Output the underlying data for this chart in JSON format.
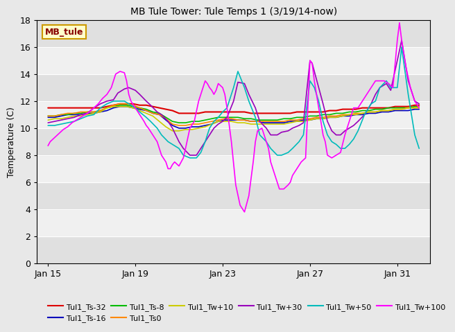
{
  "title": "MB Tule Tower: Tule Temps 1 (3/19/14-now)",
  "ylabel": "Temperature (C)",
  "xlim_days": [
    14.5,
    32.5
  ],
  "ylim": [
    0,
    18
  ],
  "yticks": [
    0,
    2,
    4,
    6,
    8,
    10,
    12,
    14,
    16,
    18
  ],
  "xtick_labels": [
    "Jan 15",
    "Jan 19",
    "Jan 23",
    "Jan 27",
    "Jan 31"
  ],
  "xtick_positions": [
    15,
    19,
    23,
    27,
    31
  ],
  "bg_color": "#e8e8e8",
  "plot_bg": "#e0e0e0",
  "band_light": "#f0f0f0",
  "band_dark": "#e0e0e0",
  "watermark_text": "MB_tule",
  "watermark_bg": "#ffffcc",
  "watermark_border": "#cc9900",
  "watermark_text_color": "#880000",
  "legend_entries": [
    {
      "label": "Tul1_Ts-32",
      "color": "#dd0000"
    },
    {
      "label": "Tul1_Ts-16",
      "color": "#0000bb"
    },
    {
      "label": "Tul1_Ts-8",
      "color": "#00bb00"
    },
    {
      "label": "Tul1_Ts0",
      "color": "#ff8800"
    },
    {
      "label": "Tul1_Tw+10",
      "color": "#cccc00"
    },
    {
      "label": "Tul1_Tw+30",
      "color": "#9900bb"
    },
    {
      "label": "Tul1_Tw+50",
      "color": "#00bbbb"
    },
    {
      "label": "Tul1_Tw+100",
      "color": "#ff00ff"
    }
  ],
  "series": {
    "Tul1_Ts-32": {
      "color": "#dd0000",
      "lw": 1.5,
      "x": [
        15.0,
        15.3,
        15.6,
        15.9,
        16.2,
        16.5,
        16.8,
        17.1,
        17.4,
        17.7,
        18.0,
        18.3,
        18.6,
        18.9,
        19.2,
        19.5,
        19.8,
        20.1,
        20.4,
        20.7,
        21.0,
        21.3,
        21.6,
        21.9,
        22.2,
        22.5,
        22.8,
        23.1,
        23.4,
        23.7,
        24.0,
        24.3,
        24.6,
        24.9,
        25.2,
        25.5,
        25.8,
        26.1,
        26.4,
        26.7,
        27.0,
        27.3,
        27.6,
        27.9,
        28.2,
        28.5,
        28.8,
        29.1,
        29.4,
        29.7,
        30.0,
        30.3,
        30.6,
        30.9,
        31.2,
        31.5,
        31.8,
        32.0
      ],
      "y": [
        11.5,
        11.5,
        11.5,
        11.5,
        11.5,
        11.5,
        11.5,
        11.5,
        11.5,
        11.6,
        11.7,
        11.8,
        11.8,
        11.8,
        11.7,
        11.7,
        11.6,
        11.5,
        11.4,
        11.3,
        11.1,
        11.1,
        11.1,
        11.1,
        11.2,
        11.2,
        11.2,
        11.2,
        11.2,
        11.2,
        11.2,
        11.1,
        11.1,
        11.1,
        11.1,
        11.1,
        11.1,
        11.1,
        11.2,
        11.2,
        11.2,
        11.2,
        11.2,
        11.3,
        11.3,
        11.4,
        11.4,
        11.4,
        11.5,
        11.5,
        11.5,
        11.5,
        11.5,
        11.6,
        11.6,
        11.6,
        11.7,
        11.7
      ]
    },
    "Tul1_Ts-16": {
      "color": "#0000bb",
      "lw": 1.2,
      "x": [
        15.0,
        15.3,
        15.6,
        15.9,
        16.2,
        16.5,
        16.8,
        17.1,
        17.4,
        17.7,
        18.0,
        18.3,
        18.6,
        18.9,
        19.2,
        19.5,
        19.8,
        20.1,
        20.4,
        20.7,
        21.0,
        21.3,
        21.6,
        21.9,
        22.2,
        22.5,
        22.8,
        23.1,
        23.4,
        23.7,
        24.0,
        24.3,
        24.6,
        24.9,
        25.2,
        25.5,
        25.8,
        26.1,
        26.4,
        26.7,
        27.0,
        27.3,
        27.6,
        27.9,
        28.2,
        28.5,
        28.8,
        29.1,
        29.4,
        29.7,
        30.0,
        30.3,
        30.6,
        30.9,
        31.2,
        31.5,
        31.8,
        32.0
      ],
      "y": [
        10.8,
        10.8,
        10.9,
        11.0,
        11.0,
        11.0,
        11.1,
        11.1,
        11.2,
        11.3,
        11.5,
        11.6,
        11.6,
        11.5,
        11.4,
        11.3,
        11.1,
        11.0,
        10.6,
        10.2,
        10.0,
        10.0,
        10.1,
        10.1,
        10.2,
        10.3,
        10.5,
        10.6,
        10.6,
        10.6,
        10.6,
        10.5,
        10.5,
        10.4,
        10.4,
        10.4,
        10.4,
        10.5,
        10.5,
        10.6,
        10.6,
        10.7,
        10.7,
        10.8,
        10.8,
        10.9,
        10.9,
        11.0,
        11.0,
        11.1,
        11.1,
        11.2,
        11.2,
        11.3,
        11.3,
        11.3,
        11.4,
        11.4
      ]
    },
    "Tul1_Ts-8": {
      "color": "#00bb00",
      "lw": 1.2,
      "x": [
        15.0,
        15.3,
        15.6,
        15.9,
        16.2,
        16.5,
        16.8,
        17.1,
        17.4,
        17.7,
        18.0,
        18.3,
        18.6,
        18.9,
        19.2,
        19.5,
        19.8,
        20.1,
        20.4,
        20.7,
        21.0,
        21.3,
        21.6,
        21.9,
        22.2,
        22.5,
        22.8,
        23.1,
        23.4,
        23.7,
        24.0,
        24.3,
        24.6,
        24.9,
        25.2,
        25.5,
        25.8,
        26.1,
        26.4,
        26.7,
        27.0,
        27.3,
        27.6,
        27.9,
        28.2,
        28.5,
        28.8,
        29.1,
        29.4,
        29.7,
        30.0,
        30.3,
        30.6,
        30.9,
        31.2,
        31.5,
        31.8,
        32.0
      ],
      "y": [
        10.9,
        10.9,
        11.0,
        11.0,
        11.1,
        11.1,
        11.2,
        11.2,
        11.3,
        11.5,
        11.6,
        11.7,
        11.7,
        11.6,
        11.5,
        11.4,
        11.2,
        11.1,
        10.8,
        10.5,
        10.4,
        10.4,
        10.5,
        10.5,
        10.6,
        10.7,
        10.8,
        10.8,
        10.8,
        10.8,
        10.7,
        10.7,
        10.6,
        10.6,
        10.6,
        10.6,
        10.7,
        10.7,
        10.8,
        10.8,
        10.9,
        10.9,
        11.0,
        11.0,
        11.1,
        11.1,
        11.2,
        11.2,
        11.3,
        11.3,
        11.4,
        11.4,
        11.5,
        11.5,
        11.5,
        11.5,
        11.6,
        11.6
      ]
    },
    "Tul1_Ts0": {
      "color": "#ff8800",
      "lw": 1.2,
      "x": [
        15.0,
        15.3,
        15.6,
        15.9,
        16.2,
        16.5,
        16.8,
        17.1,
        17.4,
        17.7,
        18.0,
        18.3,
        18.6,
        18.9,
        19.2,
        19.5,
        19.8,
        20.1,
        20.4,
        20.7,
        21.0,
        21.3,
        21.6,
        21.9,
        22.2,
        22.5,
        22.8,
        23.1,
        23.4,
        23.7,
        24.0,
        24.3,
        24.6,
        24.9,
        25.2,
        25.5,
        25.8,
        26.1,
        26.4,
        26.7,
        27.0,
        27.3,
        27.6,
        27.9,
        28.2,
        28.5,
        28.8,
        29.1,
        29.4,
        29.7,
        30.0,
        30.3,
        30.6,
        30.9,
        31.2,
        31.5,
        31.8,
        32.0
      ],
      "y": [
        10.9,
        10.9,
        11.0,
        11.1,
        11.1,
        11.2,
        11.2,
        11.2,
        11.3,
        11.5,
        11.7,
        11.8,
        11.8,
        11.7,
        11.5,
        11.3,
        11.1,
        11.0,
        10.7,
        10.3,
        10.2,
        10.2,
        10.3,
        10.3,
        10.4,
        10.5,
        10.6,
        10.7,
        10.7,
        10.6,
        10.6,
        10.5,
        10.5,
        10.5,
        10.5,
        10.5,
        10.5,
        10.6,
        10.6,
        10.7,
        10.7,
        10.8,
        10.8,
        10.9,
        10.9,
        11.0,
        11.0,
        11.1,
        11.1,
        11.2,
        11.2,
        11.3,
        11.3,
        11.4,
        11.4,
        11.5,
        11.5,
        11.6
      ]
    },
    "Tul1_Tw+10": {
      "color": "#cccc00",
      "lw": 1.2,
      "x": [
        15.0,
        15.3,
        15.6,
        15.9,
        16.2,
        16.5,
        16.8,
        17.1,
        17.4,
        17.7,
        18.0,
        18.3,
        18.6,
        18.9,
        19.2,
        19.5,
        19.8,
        20.1,
        20.4,
        20.7,
        21.0,
        21.3,
        21.6,
        21.9,
        22.2,
        22.5,
        22.8,
        23.1,
        23.4,
        23.7,
        24.0,
        24.3,
        24.6,
        24.9,
        25.2,
        25.5,
        25.8,
        26.1,
        26.4,
        26.7,
        27.0,
        27.3,
        27.6,
        27.9,
        28.2,
        28.5,
        28.8,
        29.1,
        29.4,
        29.7,
        30.0,
        30.3,
        30.6,
        30.9,
        31.2,
        31.5,
        31.8,
        32.0
      ],
      "y": [
        10.6,
        10.7,
        10.7,
        10.8,
        10.9,
        10.9,
        11.0,
        11.1,
        11.2,
        11.5,
        11.6,
        11.6,
        11.6,
        11.5,
        11.3,
        11.1,
        10.9,
        10.5,
        10.1,
        9.8,
        9.8,
        9.9,
        9.9,
        10.0,
        10.1,
        10.3,
        10.5,
        10.5,
        10.5,
        10.4,
        10.4,
        10.3,
        10.3,
        10.3,
        10.3,
        10.3,
        10.3,
        10.4,
        10.5,
        10.5,
        10.6,
        10.7,
        10.7,
        10.8,
        10.8,
        10.9,
        11.0,
        11.0,
        11.1,
        11.2,
        11.2,
        11.3,
        11.3,
        11.4,
        11.4,
        11.5,
        11.5,
        11.5
      ]
    },
    "Tul1_Tw+30": {
      "color": "#9900bb",
      "lw": 1.2,
      "x": [
        15.0,
        15.3,
        15.6,
        15.9,
        16.2,
        16.5,
        16.8,
        17.1,
        17.4,
        17.7,
        18.0,
        18.2,
        18.5,
        18.7,
        19.0,
        19.2,
        19.5,
        19.7,
        20.0,
        20.2,
        20.5,
        20.7,
        21.0,
        21.2,
        21.5,
        21.8,
        22.0,
        22.2,
        22.4,
        22.6,
        22.8,
        23.0,
        23.2,
        23.5,
        23.7,
        24.0,
        24.2,
        24.5,
        24.7,
        25.0,
        25.2,
        25.5,
        25.7,
        26.0,
        26.2,
        26.5,
        26.7,
        27.0,
        27.1,
        27.2,
        27.4,
        27.6,
        27.8,
        28.0,
        28.2,
        28.4,
        28.6,
        28.8,
        29.0,
        29.2,
        29.5,
        29.8,
        30.0,
        30.2,
        30.5,
        30.7,
        31.0,
        31.2,
        31.5,
        31.8,
        32.0
      ],
      "y": [
        10.4,
        10.5,
        10.6,
        10.7,
        10.8,
        11.0,
        11.1,
        11.5,
        11.8,
        12.0,
        12.1,
        12.6,
        12.9,
        13.0,
        12.8,
        12.5,
        12.0,
        11.7,
        11.2,
        11.0,
        10.5,
        10.0,
        9.0,
        8.5,
        8.0,
        8.0,
        8.5,
        9.0,
        9.5,
        10.0,
        10.3,
        10.5,
        10.8,
        12.0,
        13.4,
        13.3,
        12.5,
        11.5,
        10.5,
        10.0,
        9.5,
        9.5,
        9.7,
        9.8,
        10.0,
        10.2,
        10.4,
        15.0,
        14.8,
        14.2,
        13.0,
        11.8,
        10.5,
        9.8,
        9.5,
        9.5,
        9.8,
        10.0,
        10.2,
        10.5,
        11.0,
        11.8,
        12.5,
        13.0,
        13.3,
        12.8,
        15.0,
        16.5,
        13.5,
        12.0,
        11.8
      ]
    },
    "Tul1_Tw+50": {
      "color": "#00bbbb",
      "lw": 1.2,
      "x": [
        15.0,
        15.3,
        15.6,
        15.9,
        16.2,
        16.5,
        16.8,
        17.1,
        17.4,
        17.7,
        18.0,
        18.2,
        18.5,
        18.7,
        19.0,
        19.2,
        19.5,
        19.7,
        20.0,
        20.2,
        20.5,
        20.7,
        21.0,
        21.2,
        21.5,
        21.8,
        22.0,
        22.2,
        22.4,
        22.6,
        22.8,
        23.0,
        23.2,
        23.5,
        23.7,
        24.0,
        24.2,
        24.5,
        24.7,
        25.0,
        25.2,
        25.5,
        25.7,
        26.0,
        26.2,
        26.5,
        26.7,
        27.0,
        27.2,
        27.4,
        27.6,
        27.8,
        28.0,
        28.2,
        28.4,
        28.6,
        28.8,
        29.0,
        29.2,
        29.5,
        29.8,
        30.0,
        30.2,
        30.5,
        30.7,
        31.0,
        31.2,
        31.5,
        31.8,
        32.0
      ],
      "y": [
        10.2,
        10.2,
        10.3,
        10.4,
        10.5,
        10.7,
        10.9,
        11.0,
        11.5,
        11.8,
        12.0,
        12.0,
        12.0,
        11.8,
        11.5,
        11.2,
        10.8,
        10.5,
        10.0,
        9.5,
        9.0,
        8.8,
        8.5,
        8.0,
        7.8,
        7.8,
        8.2,
        9.0,
        10.0,
        10.5,
        10.8,
        11.2,
        11.5,
        13.0,
        14.2,
        13.0,
        12.0,
        10.8,
        9.5,
        9.0,
        8.5,
        8.0,
        8.0,
        8.2,
        8.5,
        9.0,
        9.5,
        13.5,
        13.0,
        12.0,
        10.5,
        9.5,
        9.0,
        8.8,
        8.5,
        8.5,
        8.8,
        9.2,
        9.8,
        11.0,
        11.8,
        12.0,
        13.0,
        13.5,
        13.0,
        13.0,
        16.0,
        12.5,
        9.5,
        8.5
      ]
    },
    "Tul1_Tw+100": {
      "color": "#ff00ff",
      "lw": 1.2,
      "x": [
        15.0,
        15.1,
        15.3,
        15.5,
        15.7,
        15.9,
        16.1,
        16.3,
        16.5,
        16.7,
        16.9,
        17.1,
        17.3,
        17.5,
        17.7,
        17.9,
        18.1,
        18.3,
        18.5,
        18.6,
        18.7,
        18.8,
        19.0,
        19.2,
        19.4,
        19.5,
        19.6,
        19.8,
        20.0,
        20.1,
        20.2,
        20.4,
        20.5,
        20.6,
        20.7,
        20.8,
        21.0,
        21.1,
        21.2,
        21.3,
        21.5,
        21.7,
        21.9,
        22.0,
        22.1,
        22.2,
        22.3,
        22.4,
        22.5,
        22.6,
        22.7,
        22.8,
        23.0,
        23.1,
        23.2,
        23.4,
        23.6,
        23.8,
        24.0,
        24.2,
        24.4,
        24.5,
        24.6,
        24.8,
        25.0,
        25.1,
        25.2,
        25.4,
        25.6,
        25.8,
        26.0,
        26.1,
        26.2,
        26.4,
        26.6,
        26.8,
        27.0,
        27.1,
        27.2,
        27.3,
        27.4,
        27.5,
        27.6,
        27.7,
        27.8,
        28.0,
        28.2,
        28.4,
        28.6,
        28.8,
        29.0,
        29.2,
        29.4,
        29.6,
        29.8,
        30.0,
        30.2,
        30.4,
        30.6,
        30.8,
        31.0,
        31.1,
        31.2,
        31.4,
        31.6,
        31.8,
        32.0
      ],
      "y": [
        8.7,
        9.0,
        9.3,
        9.6,
        9.9,
        10.1,
        10.4,
        10.6,
        10.8,
        11.0,
        11.2,
        11.5,
        11.8,
        12.2,
        12.5,
        13.0,
        14.0,
        14.2,
        14.1,
        13.5,
        12.5,
        12.0,
        11.5,
        11.0,
        10.5,
        10.2,
        10.0,
        9.5,
        9.0,
        8.5,
        8.0,
        7.5,
        7.0,
        7.0,
        7.3,
        7.5,
        7.2,
        7.5,
        7.8,
        8.5,
        10.0,
        10.5,
        12.0,
        12.5,
        13.0,
        13.5,
        13.3,
        13.0,
        12.8,
        12.5,
        12.8,
        13.3,
        13.0,
        12.5,
        11.5,
        9.0,
        5.8,
        4.3,
        3.8,
        5.0,
        7.5,
        9.0,
        9.8,
        10.0,
        9.0,
        8.5,
        7.5,
        6.5,
        5.5,
        5.5,
        5.8,
        6.0,
        6.5,
        7.0,
        7.5,
        7.8,
        15.0,
        14.8,
        13.5,
        12.5,
        11.5,
        10.5,
        9.5,
        9.0,
        8.0,
        7.8,
        8.0,
        8.2,
        9.5,
        10.5,
        11.5,
        11.5,
        12.0,
        12.5,
        13.0,
        13.5,
        13.5,
        13.5,
        13.3,
        13.0,
        16.5,
        17.8,
        16.5,
        14.5,
        13.0,
        12.0,
        11.5
      ]
    }
  }
}
